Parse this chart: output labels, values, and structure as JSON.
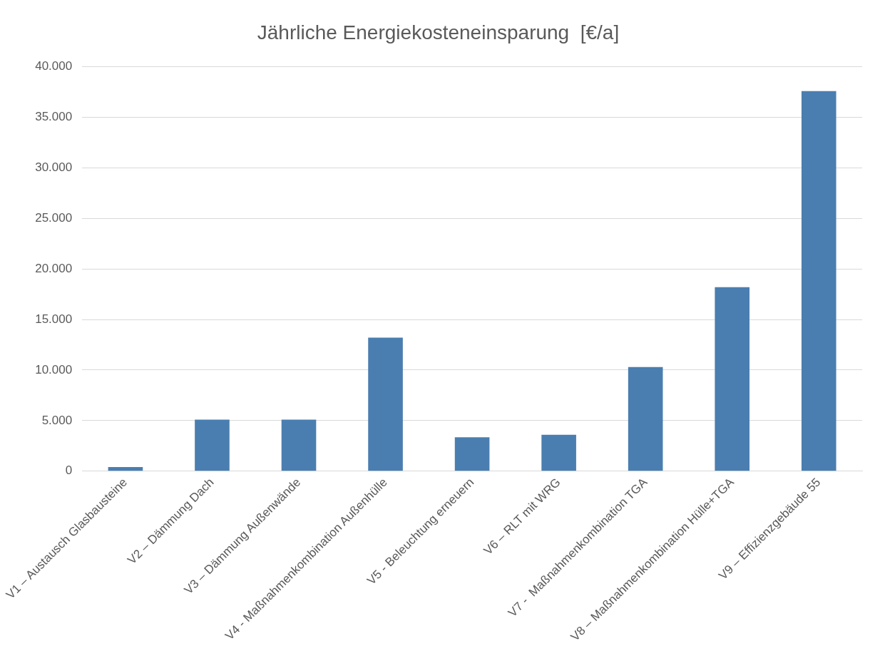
{
  "chart_data": {
    "type": "bar",
    "title": "Jährliche Energiekosteneinsparung  [€/a]",
    "categories": [
      "V1 – Austausch Glasbausteine",
      "V2 – Dämmung Dach",
      "V3 – Dämmung Außenwände",
      "V4 - Maßnahmenkombination Außenhülle",
      "V5 - Beleuchtung erneuern",
      "V6 – RLT mit WRG",
      "V7 -  Maßnahmenkombination TGA",
      "V8 – Maßnahmenkombination Hülle+TGA",
      "V9 – Effizienzgebäude 55"
    ],
    "values": [
      400,
      5100,
      5100,
      13200,
      3350,
      3600,
      10300,
      18200,
      37600
    ],
    "color": "#4a7eb0",
    "ylim": [
      0,
      40000
    ],
    "yticks": [
      {
        "value": 0,
        "label": "0"
      },
      {
        "value": 5000,
        "label": "5.000"
      },
      {
        "value": 10000,
        "label": "10.000"
      },
      {
        "value": 15000,
        "label": "15.000"
      },
      {
        "value": 20000,
        "label": "20.000"
      },
      {
        "value": 25000,
        "label": "25.000"
      },
      {
        "value": 30000,
        "label": "30.000"
      },
      {
        "value": 35000,
        "label": "35.000"
      },
      {
        "value": 40000,
        "label": "40.000"
      }
    ],
    "grid": "y",
    "legend": false
  }
}
